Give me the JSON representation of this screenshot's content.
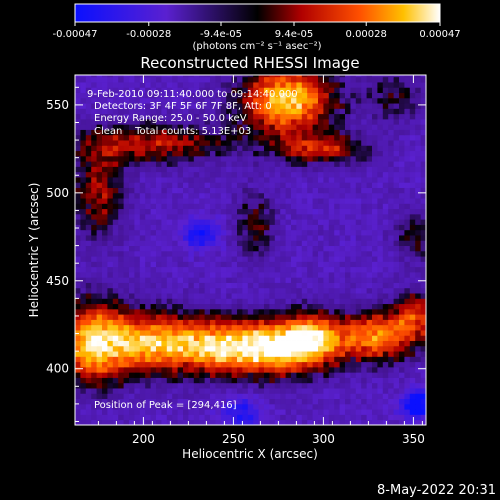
{
  "chart_data": {
    "type": "heatmap",
    "title": "Reconstructed RHESSI Image",
    "xlabel": "Heliocentric X (arcsec)",
    "ylabel": "Heliocentric Y (arcsec)",
    "xlim": [
      162,
      357
    ],
    "ylim": [
      368,
      567
    ],
    "x_ticks": [
      200,
      250,
      300,
      350
    ],
    "y_ticks": [
      400,
      450,
      500,
      550
    ],
    "colorbar": {
      "range": [
        -0.00047,
        0.00047
      ],
      "tick_values": [
        -0.00047,
        -0.00028,
        -9.4e-05,
        9.4e-05,
        0.00028,
        0.00047
      ],
      "tick_labels": [
        "-0.00047",
        "-0.00028",
        "-9.4e-05",
        "9.4e-05",
        "0.00028",
        "0.00047"
      ],
      "units_label": "(photons cm⁻² s⁻¹ asec⁻²)"
    },
    "annotations": {
      "time_range": "9-Feb-2010 09:11:40.000 to 09:14:40.000",
      "detectors": "Detectors: 3F 4F 5F 6F 7F 8F, Att: 0",
      "energy_range": "Energy Range: 25.0 - 50.0 keV",
      "clean": "Clean    Total counts: 5.13E+03",
      "peak": "Position of Peak = [294,416]"
    },
    "peak": [
      294,
      416
    ],
    "sources": [
      {
        "x": 280,
        "y": 553,
        "amp": 1.0,
        "sx": 18,
        "sy": 14
      },
      {
        "x": 172,
        "y": 415,
        "amp": 1.0,
        "sx": 14,
        "sy": 16
      },
      {
        "x": 205,
        "y": 415,
        "amp": 0.85,
        "sx": 16,
        "sy": 12
      },
      {
        "x": 240,
        "y": 413,
        "amp": 0.95,
        "sx": 16,
        "sy": 11
      },
      {
        "x": 270,
        "y": 412,
        "amp": 0.9,
        "sx": 14,
        "sy": 11
      },
      {
        "x": 294,
        "y": 416,
        "amp": 1.0,
        "sx": 13,
        "sy": 11
      },
      {
        "x": 330,
        "y": 418,
        "amp": 0.8,
        "sx": 14,
        "sy": 10
      },
      {
        "x": 352,
        "y": 430,
        "amp": 0.55,
        "sx": 10,
        "sy": 10
      },
      {
        "x": 300,
        "y": 525,
        "amp": 0.55,
        "sx": 18,
        "sy": 6
      },
      {
        "x": 205,
        "y": 528,
        "amp": 0.55,
        "sx": 30,
        "sy": 8
      },
      {
        "x": 175,
        "y": 500,
        "amp": 0.5,
        "sx": 10,
        "sy": 18
      },
      {
        "x": 262,
        "y": 482,
        "amp": 0.35,
        "sx": 8,
        "sy": 14
      },
      {
        "x": 352,
        "y": 475,
        "amp": 0.35,
        "sx": 8,
        "sy": 10
      },
      {
        "x": 340,
        "y": 555,
        "amp": 0.3,
        "sx": 12,
        "sy": 10
      }
    ],
    "negative_sources": [
      {
        "x": 352,
        "y": 380,
        "amp": 0.8,
        "sx": 6,
        "sy": 6
      },
      {
        "x": 232,
        "y": 477,
        "amp": 0.6,
        "sx": 7,
        "sy": 6
      },
      {
        "x": 255,
        "y": 375,
        "amp": 0.5,
        "sx": 8,
        "sy": 6
      }
    ]
  },
  "footer": {
    "timestamp": "8-May-2022 20:31"
  }
}
